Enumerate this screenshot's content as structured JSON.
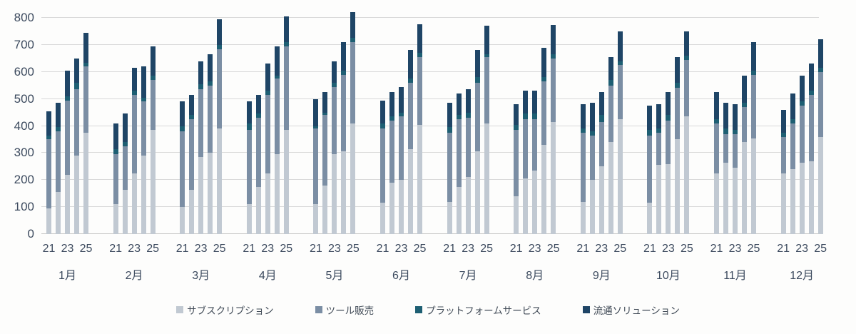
{
  "chart_data": {
    "type": "bar",
    "stacked": true,
    "title": "",
    "xlabel": "",
    "ylabel": "",
    "ylim": [
      0,
      800
    ],
    "yticks": [
      0,
      100,
      200,
      300,
      400,
      500,
      600,
      700,
      800
    ],
    "grid": true,
    "legend_position": "bottom",
    "year_ticks_shown": [
      "21",
      "23",
      "25"
    ],
    "series": [
      {
        "name": "サブスクリプション",
        "color": "#c1c9d2"
      },
      {
        "name": "ツール販売",
        "color": "#7b8ea4"
      },
      {
        "name": "プラットフォームサービス",
        "color": "#1e5f73"
      },
      {
        "name": "流通ソリューション",
        "color": "#1f4566"
      }
    ],
    "months": [
      {
        "label": "1月",
        "bars": [
          {
            "year": "21",
            "values": [
              95,
              255,
              15,
              90
            ]
          },
          {
            "year": "22",
            "values": [
              155,
              225,
              15,
              90
            ]
          },
          {
            "year": "23",
            "values": [
              220,
              275,
              15,
              95
            ]
          },
          {
            "year": "24",
            "values": [
              290,
              245,
              25,
              90
            ]
          },
          {
            "year": "25",
            "values": [
              375,
              245,
              15,
              110
            ]
          }
        ]
      },
      {
        "label": "2月",
        "bars": [
          {
            "year": "21",
            "values": [
              110,
              185,
              20,
              95
            ]
          },
          {
            "year": "22",
            "values": [
              165,
              160,
              15,
              105
            ]
          },
          {
            "year": "23",
            "values": [
              225,
              290,
              15,
              85
            ]
          },
          {
            "year": "24",
            "values": [
              290,
              200,
              15,
              115
            ]
          },
          {
            "year": "25",
            "values": [
              385,
              185,
              15,
              110
            ]
          }
        ]
      },
      {
        "label": "3月",
        "bars": [
          {
            "year": "21",
            "values": [
              100,
              280,
              20,
              90
            ]
          },
          {
            "year": "22",
            "values": [
              165,
              260,
              15,
              75
            ]
          },
          {
            "year": "23",
            "values": [
              285,
              250,
              20,
              85
            ]
          },
          {
            "year": "24",
            "values": [
              300,
              250,
              15,
              100
            ]
          },
          {
            "year": "25",
            "values": [
              390,
              295,
              15,
              95
            ]
          }
        ]
      },
      {
        "label": "4月",
        "bars": [
          {
            "year": "21",
            "values": [
              110,
              275,
              25,
              80
            ]
          },
          {
            "year": "22",
            "values": [
              175,
              255,
              15,
              70
            ]
          },
          {
            "year": "23",
            "values": [
              225,
              290,
              15,
              100
            ]
          },
          {
            "year": "24",
            "values": [
              295,
              280,
              10,
              110
            ]
          },
          {
            "year": "25",
            "values": [
              385,
              310,
              15,
              95
            ]
          }
        ]
      },
      {
        "label": "5月",
        "bars": [
          {
            "year": "21",
            "values": [
              110,
              280,
              10,
              100
            ]
          },
          {
            "year": "22",
            "values": [
              180,
              260,
              10,
              75
            ]
          },
          {
            "year": "23",
            "values": [
              295,
              250,
              15,
              80
            ]
          },
          {
            "year": "24",
            "values": [
              305,
              285,
              15,
              105
            ]
          },
          {
            "year": "25",
            "values": [
              410,
              300,
              15,
              95
            ]
          }
        ]
      },
      {
        "label": "6月",
        "bars": [
          {
            "year": "21",
            "values": [
              115,
              275,
              20,
              85
            ]
          },
          {
            "year": "22",
            "values": [
              190,
              230,
              15,
              90
            ]
          },
          {
            "year": "23",
            "values": [
              200,
              235,
              15,
              95
            ]
          },
          {
            "year": "24",
            "values": [
              315,
              245,
              15,
              105
            ]
          },
          {
            "year": "25",
            "values": [
              405,
              250,
              15,
              105
            ]
          }
        ]
      },
      {
        "label": "7月",
        "bars": [
          {
            "year": "21",
            "values": [
              120,
              255,
              20,
              90
            ]
          },
          {
            "year": "22",
            "values": [
              175,
              250,
              15,
              80
            ]
          },
          {
            "year": "23",
            "values": [
              210,
              220,
              20,
              85
            ]
          },
          {
            "year": "24",
            "values": [
              305,
              255,
              20,
              100
            ]
          },
          {
            "year": "25",
            "values": [
              410,
              245,
              10,
              105
            ]
          }
        ]
      },
      {
        "label": "8月",
        "bars": [
          {
            "year": "21",
            "values": [
              140,
              245,
              20,
              75
            ]
          },
          {
            "year": "22",
            "values": [
              205,
              220,
              20,
              85
            ]
          },
          {
            "year": "23",
            "values": [
              235,
              190,
              20,
              85
            ]
          },
          {
            "year": "24",
            "values": [
              330,
              235,
              15,
              110
            ]
          },
          {
            "year": "25",
            "values": [
              415,
              235,
              15,
              110
            ]
          }
        ]
      },
      {
        "label": "9月",
        "bars": [
          {
            "year": "21",
            "values": [
              120,
              255,
              15,
              90
            ]
          },
          {
            "year": "22",
            "values": [
              200,
              165,
              15,
              105
            ]
          },
          {
            "year": "23",
            "values": [
              250,
              165,
              25,
              85
            ]
          },
          {
            "year": "24",
            "values": [
              340,
              210,
              20,
              85
            ]
          },
          {
            "year": "25",
            "values": [
              425,
              200,
              15,
              110
            ]
          }
        ]
      },
      {
        "label": "10月",
        "bars": [
          {
            "year": "21",
            "values": [
              115,
              250,
              20,
              90
            ]
          },
          {
            "year": "22",
            "values": [
              255,
              120,
              15,
              90
            ]
          },
          {
            "year": "23",
            "values": [
              260,
              160,
              20,
              85
            ]
          },
          {
            "year": "24",
            "values": [
              350,
              190,
              20,
              95
            ]
          },
          {
            "year": "25",
            "values": [
              435,
              210,
              15,
              90
            ]
          }
        ]
      },
      {
        "label": "11月",
        "bars": [
          {
            "year": "21",
            "values": [
              225,
              185,
              15,
              100
            ]
          },
          {
            "year": "22",
            "values": [
              265,
              105,
              20,
              95
            ]
          },
          {
            "year": "23",
            "values": [
              245,
              125,
              15,
              95
            ]
          },
          {
            "year": "24",
            "values": [
              340,
              130,
              15,
              100
            ]
          },
          {
            "year": "25",
            "values": [
              355,
              235,
              15,
              105
            ]
          }
        ]
      },
      {
        "label": "12月",
        "bars": [
          {
            "year": "21",
            "values": [
              225,
              135,
              15,
              85
            ]
          },
          {
            "year": "22",
            "values": [
              240,
              170,
              15,
              95
            ]
          },
          {
            "year": "23",
            "values": [
              265,
              210,
              15,
              95
            ]
          },
          {
            "year": "24",
            "values": [
              270,
              245,
              15,
              100
            ]
          },
          {
            "year": "25",
            "values": [
              360,
              240,
              15,
              105
            ]
          }
        ]
      }
    ]
  },
  "colors": {
    "grid": "#d9d9d9",
    "axis_text": "#3c4a5e",
    "background": "#fdfdfc"
  }
}
